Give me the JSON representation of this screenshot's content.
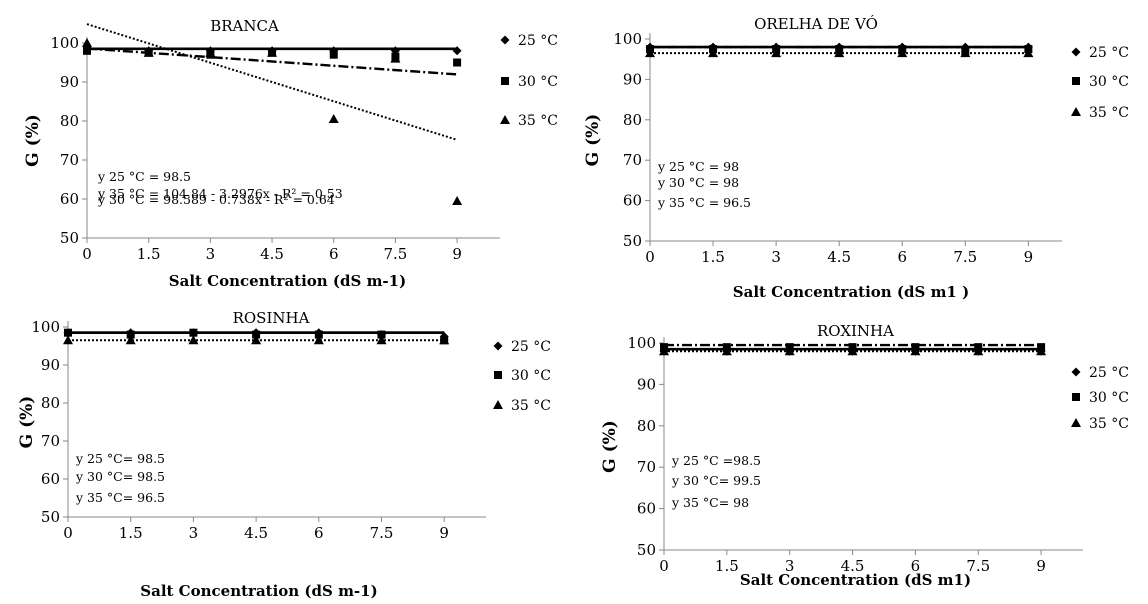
{
  "chart_data": [
    {
      "type": "scatter",
      "title": "BRANCA",
      "xlabel": "Salt Concentration (dS m-1)",
      "ylabel": "G (%)",
      "x": [
        0,
        1.5,
        3,
        4.5,
        6,
        7.5,
        9
      ],
      "x_ticks": [
        "0",
        "1.5",
        "3",
        "4.5",
        "6",
        "7.5",
        "9"
      ],
      "y_ticks": [
        "50",
        "60",
        "70",
        "80",
        "90",
        "100"
      ],
      "xlim": [
        0,
        9.8
      ],
      "ylim": [
        50,
        100
      ],
      "series": [
        {
          "name": "25 °C",
          "marker": "diamond",
          "values": [
            99,
            98,
            98,
            98,
            98,
            98,
            98
          ],
          "fit": {
            "kind": "constant",
            "params": [
              98.5
            ],
            "style": "solid"
          }
        },
        {
          "name": "30 °C",
          "marker": "square",
          "values": [
            98,
            97.5,
            97,
            97.5,
            97,
            96.5,
            95
          ],
          "fit": {
            "kind": "linear",
            "params": [
              98.589,
              -0.738
            ],
            "style": "dashdot"
          }
        },
        {
          "name": "35 °C",
          "marker": "triangle",
          "values": [
            100,
            97.5,
            97.5,
            97.5,
            80.5,
            96,
            59.5
          ],
          "fit": {
            "kind": "linear",
            "params": [
              104.84,
              -3.2976
            ],
            "style": "dotted"
          }
        }
      ],
      "legend_position": "right",
      "equations": [
        "y 25  °C = 98.5",
        "y 30  °C = 98.589 - 0.738x - R² = 0.64",
        "y 35  °C = 104.84 - 3.2976x - R² = 0.53"
      ]
    },
    {
      "type": "scatter",
      "title": "ORELHA DE VÓ",
      "xlabel": "Salt Concentration (dS m1 )",
      "ylabel": "G (%)",
      "x": [
        0,
        1.5,
        3,
        4.5,
        6,
        7.5,
        9
      ],
      "x_ticks": [
        "0",
        "1.5",
        "3",
        "4.5",
        "6",
        "7.5",
        "9"
      ],
      "y_ticks": [
        "50",
        "60",
        "70",
        "80",
        "90",
        "100"
      ],
      "xlim": [
        0,
        9.8
      ],
      "ylim": [
        50,
        100
      ],
      "series": [
        {
          "name": "25 °C",
          "marker": "diamond",
          "values": [
            98,
            98,
            98,
            98,
            98,
            98,
            98
          ],
          "fit": {
            "kind": "constant",
            "params": [
              98
            ],
            "style": "solid"
          }
        },
        {
          "name": "30 °C",
          "marker": "square",
          "values": [
            97.5,
            97.5,
            97.5,
            97.5,
            97.5,
            97,
            97.5
          ],
          "fit": {
            "kind": "constant",
            "params": [
              98
            ],
            "style": "dashdot"
          }
        },
        {
          "name": "35 °C",
          "marker": "triangle",
          "values": [
            96.5,
            96.5,
            96.5,
            96.5,
            96.5,
            96.5,
            96.5
          ],
          "fit": {
            "kind": "constant",
            "params": [
              96.5
            ],
            "style": "dotted"
          }
        }
      ],
      "legend_position": "right",
      "equations": [
        "y 25  °C = 98",
        "y 30  °C = 98",
        "y 35  °C = 96.5"
      ]
    },
    {
      "type": "scatter",
      "title": "ROSINHA",
      "xlabel": "Salt Concentration (dS m-1)",
      "ylabel": "G (%)",
      "x": [
        0,
        1.5,
        3,
        4.5,
        6,
        7.5,
        9
      ],
      "x_ticks": [
        "0",
        "1.5",
        "3",
        "4.5",
        "6",
        "7.5",
        "9"
      ],
      "y_ticks": [
        "50",
        "60",
        "70",
        "80",
        "90",
        "100"
      ],
      "xlim": [
        0,
        10
      ],
      "ylim": [
        50,
        100
      ],
      "series": [
        {
          "name": "25 °C",
          "marker": "diamond",
          "values": [
            98.5,
            98.5,
            98.5,
            98.5,
            98.5,
            98,
            97.5
          ],
          "fit": {
            "kind": "constant",
            "params": [
              98.5
            ],
            "style": "solid"
          }
        },
        {
          "name": "30 °C",
          "marker": "square",
          "values": [
            98.5,
            98,
            98.5,
            98,
            98,
            98,
            96.5
          ],
          "fit": {
            "kind": "constant",
            "params": [
              98.5
            ],
            "style": "solid"
          }
        },
        {
          "name": "35 °C",
          "marker": "triangle",
          "values": [
            96.5,
            96.5,
            96.5,
            96.5,
            96.5,
            96.5,
            96.5
          ],
          "fit": {
            "kind": "constant",
            "params": [
              96.5
            ],
            "style": "dotted"
          }
        }
      ],
      "legend_position": "right",
      "equations": [
        "y 25 °C= 98.5",
        "y 30 °C= 98.5",
        "y 35 °C= 96.5"
      ]
    },
    {
      "type": "scatter",
      "title": "ROXINHA",
      "xlabel": "Salt Concentration (dS m1)",
      "ylabel": "G (%)",
      "x": [
        0,
        1.5,
        3,
        4.5,
        6,
        7.5,
        9
      ],
      "x_ticks": [
        "0",
        "1.5",
        "3",
        "4.5",
        "6",
        "7.5",
        "9"
      ],
      "y_ticks": [
        "50",
        "60",
        "70",
        "80",
        "90",
        "100"
      ],
      "xlim": [
        0,
        10
      ],
      "ylim": [
        50,
        100
      ],
      "series": [
        {
          "name": "25 °C",
          "marker": "diamond",
          "values": [
            98,
            98,
            98,
            98,
            98,
            98,
            98
          ],
          "fit": {
            "kind": "constant",
            "params": [
              98.5
            ],
            "style": "solid"
          }
        },
        {
          "name": "30 °C",
          "marker": "square",
          "values": [
            99,
            99,
            99,
            99,
            99,
            99,
            99
          ],
          "fit": {
            "kind": "constant",
            "params": [
              99.5
            ],
            "style": "dashdot"
          }
        },
        {
          "name": "35 °C",
          "marker": "triangle",
          "values": [
            98,
            98,
            98,
            98,
            98,
            98,
            98
          ],
          "fit": {
            "kind": "constant",
            "params": [
              98
            ],
            "style": "dotted"
          }
        }
      ],
      "legend_position": "right",
      "equations": [
        "y 25 °C =98.5",
        "y 30 °C= 99.5",
        "y 35 °C= 98"
      ]
    }
  ]
}
